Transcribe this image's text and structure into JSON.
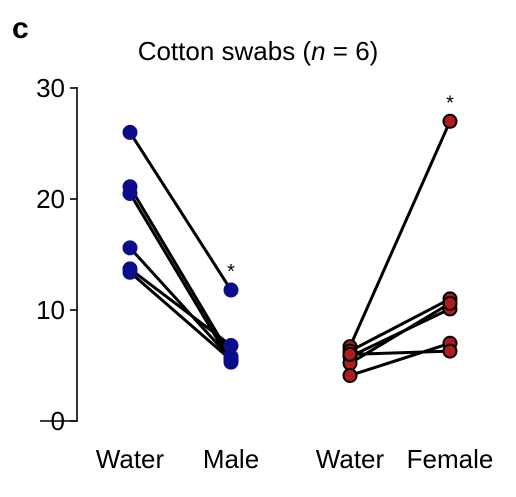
{
  "panel_label": "c",
  "chart_data": {
    "type": "scatter",
    "title_pre": "Cotton swabs (",
    "title_n": "n",
    "title_post": " = 6)",
    "ylim": [
      0,
      30
    ],
    "yticks": [
      "0",
      "10",
      "20",
      "30"
    ],
    "grid": false,
    "groups": [
      {
        "categories": [
          "Water",
          "Male"
        ],
        "color": "#0d0d8c",
        "edge": "#0d0d8c",
        "pairs": [
          [
            26.0,
            11.8
          ],
          [
            21.1,
            5.8
          ],
          [
            20.5,
            5.3
          ],
          [
            15.6,
            5.6
          ],
          [
            13.7,
            6.8
          ],
          [
            13.4,
            5.5
          ]
        ],
        "significance": "*"
      },
      {
        "categories": [
          "Water",
          "Female"
        ],
        "color": "#b01b1b",
        "edge": "#000000",
        "pairs": [
          [
            6.7,
            27.0
          ],
          [
            6.3,
            11.0
          ],
          [
            5.8,
            10.1
          ],
          [
            5.2,
            10.6
          ],
          [
            4.1,
            7.0
          ],
          [
            6.0,
            6.3
          ]
        ],
        "significance": "*"
      }
    ]
  }
}
